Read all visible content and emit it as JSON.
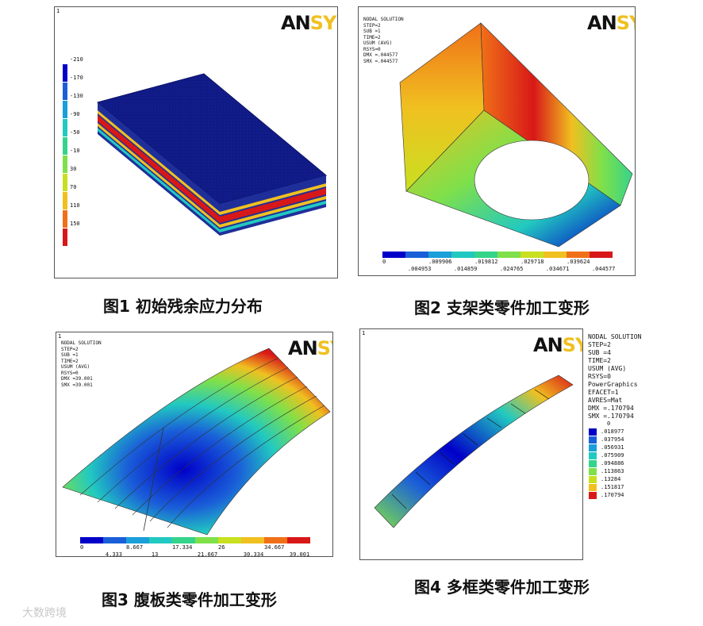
{
  "captions": {
    "fig1": "图1 初始残余应力分布",
    "fig2": "图2  支架类零件加工变形",
    "fig3": "图3 腹板类零件加工变形",
    "fig4": "图4  多框类零件加工变形"
  },
  "logo": {
    "an": "AN",
    "sys": "SYS"
  },
  "panel1": {
    "corner": "1",
    "legend": [
      "-210",
      "-170",
      "-130",
      "-90",
      "-50",
      "-10",
      "30",
      "70",
      "110",
      "150"
    ],
    "legend_colors": [
      "#0000c8",
      "#1a5fd8",
      "#1a9fd8",
      "#22c9c0",
      "#35d48a",
      "#7fe04a",
      "#c8e020",
      "#f0c020",
      "#f07018",
      "#d81818"
    ]
  },
  "panel2": {
    "header": [
      "NODAL SOLUTION",
      "STEP=2",
      "SUB =1",
      "TIME=2",
      "USUM     (AVG)",
      "RSYS=0",
      "DMX =.044577",
      "SMX =.044577"
    ],
    "scale_top": [
      "0",
      ".009906",
      ".019812",
      ".029718",
      ".039624"
    ],
    "scale_bottom": [
      ".004953",
      ".014859",
      ".024765",
      ".034671",
      ".044577"
    ],
    "colors": [
      "#0000c8",
      "#1a5fd8",
      "#1a9fd8",
      "#22c9c0",
      "#35d48a",
      "#7fe04a",
      "#c8e020",
      "#f0c020",
      "#f07018",
      "#d81818"
    ]
  },
  "panel3": {
    "header": [
      "NODAL SOLUTION",
      "STEP=2",
      "SUB =1",
      "TIME=2",
      "USUM     (AVG)",
      "RSYS=0",
      "DMX =39.001",
      "SMX =39.001"
    ],
    "scale_top": [
      "0",
      "8.667",
      "17.334",
      "26",
      "34.667"
    ],
    "scale_bottom": [
      "4.333",
      "13",
      "21.667",
      "30.334",
      "39.001"
    ],
    "colors": [
      "#0000c8",
      "#1a5fd8",
      "#1a9fd8",
      "#22c9c0",
      "#35d48a",
      "#7fe04a",
      "#c8e020",
      "#f0c020",
      "#f07018",
      "#d81818"
    ]
  },
  "panel4": {
    "header": [
      "NODAL SOLUTION",
      "STEP=2",
      "SUB =4",
      "TIME=2",
      "USUM     (AVG)",
      "RSYS=0",
      "PowerGraphics",
      "EFACET=1",
      "AVRES=Mat",
      "DMX =.170794",
      "SMX =.170794"
    ],
    "legend_top": "0",
    "legend": [
      ".018977",
      ".037954",
      ".056931",
      ".075909",
      ".094886",
      ".113863",
      ".13284",
      ".151817",
      ".170794"
    ],
    "legend_colors": [
      "#0000c8",
      "#1a5fd8",
      "#1a9fd8",
      "#22c9c0",
      "#35d48a",
      "#7fe04a",
      "#c8e020",
      "#f0c020",
      "#d81818"
    ]
  },
  "watermark": "大数跨境"
}
